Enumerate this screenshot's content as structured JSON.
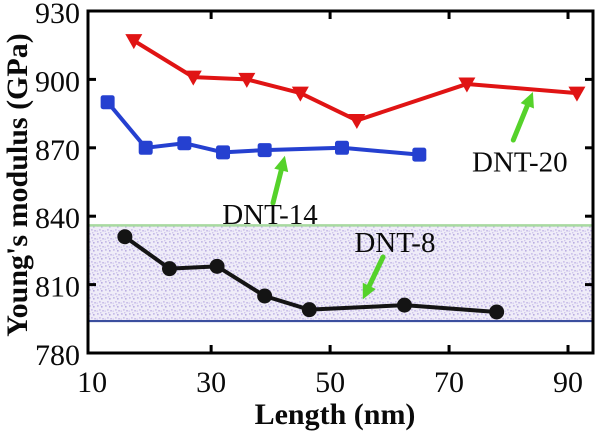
{
  "chart_data": {
    "type": "line",
    "title": "",
    "xlabel": "Length (nm)",
    "ylabel": "Young's modulus (GPa)",
    "xlim": [
      9.3,
      94.2
    ],
    "ylim": [
      780,
      930
    ],
    "grid": false,
    "legend": "none (inline annotated labels with arrows)",
    "x_tick_marks": [
      30,
      50,
      70,
      90
    ],
    "x_tick_labels": [
      10,
      30,
      50,
      70,
      90
    ],
    "y_tick_marks": [
      810,
      840,
      870,
      900
    ],
    "y_tick_labels": [
      780,
      810,
      840,
      870,
      900,
      930
    ],
    "series": [
      {
        "name": "DNT-20",
        "color": "#e01414",
        "marker": "triangle-down",
        "x": [
          17,
          27,
          36,
          45,
          54.5,
          73,
          91.5
        ],
        "y": [
          917,
          901,
          900,
          894,
          882,
          898,
          894
        ]
      },
      {
        "name": "DNT-14",
        "color": "#2540d0",
        "marker": "square",
        "x": [
          12.6,
          19,
          25.5,
          32,
          39,
          52,
          65
        ],
        "y": [
          890,
          870,
          872,
          868,
          869,
          870,
          867
        ]
      },
      {
        "name": "DNT-8",
        "color": "#141414",
        "marker": "circle",
        "x": [
          15.5,
          23,
          31,
          39,
          46.5,
          62.5,
          78
        ],
        "y": [
          831,
          817,
          818,
          805,
          799,
          801,
          798
        ]
      }
    ],
    "band": {
      "ymin": 794,
      "ymax": 836,
      "fill_base": "#efecf8",
      "fill_speckle": "#bfb3e4",
      "top_line_color": "#a8daa0",
      "bottom_line_color": "#3b4e9e"
    },
    "arrow_color": "#55d22a",
    "annotations": [
      {
        "text": "DNT-20",
        "x": 81.9,
        "y": 864,
        "arrow": {
          "x1": 80.8,
          "y1": 873.4,
          "x2": 84.1,
          "y2": 894.5
        }
      },
      {
        "text": "DNT-14",
        "x": 39.9,
        "y": 841,
        "arrow": {
          "x1": 40.4,
          "y1": 845.8,
          "x2": 42.4,
          "y2": 866.5
        }
      },
      {
        "text": "DNT-8",
        "x": 60.9,
        "y": 828.7,
        "arrow": {
          "x1": 58.9,
          "y1": 822.1,
          "x2": 55.5,
          "y2": 803.5
        }
      }
    ],
    "axis_color": "#000000"
  }
}
